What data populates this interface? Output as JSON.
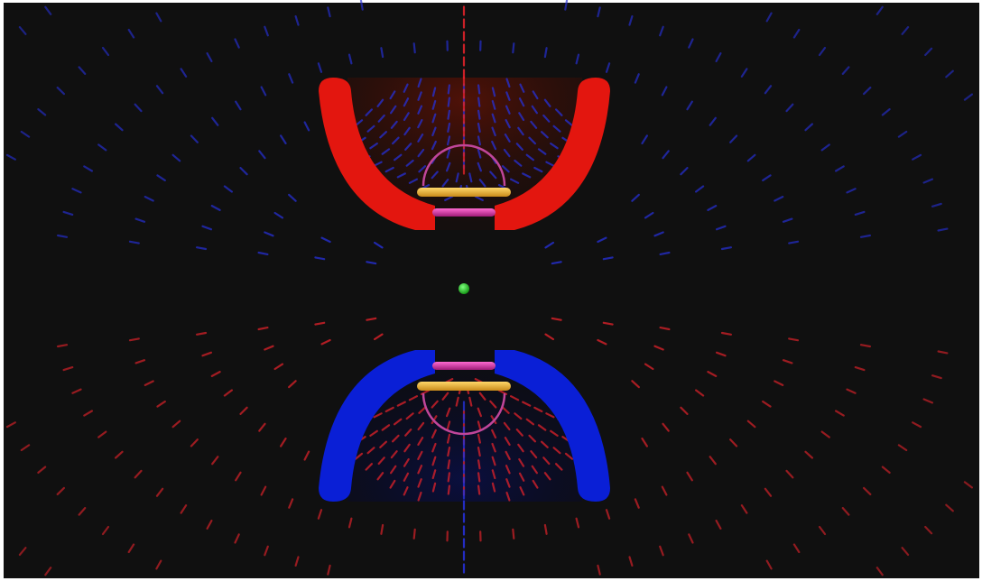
{
  "scene": {
    "background": "#101010",
    "frame_color": "#ffffff",
    "top_electrode": {
      "color": "#e3160f"
    },
    "bottom_electrode": {
      "color": "#0a1fd6"
    },
    "top_inner_glow": "#5a1206",
    "bottom_inner_glow": "#0a0f44",
    "endcap_bar": {
      "color": "#f2b233"
    },
    "ring_bar": {
      "color": "#d9359a"
    },
    "ring_outline": {
      "color": "#c0469a"
    },
    "trapped_particle": {
      "color": "#1ec01e"
    },
    "field_dash_red": "#e0222a",
    "field_dash_blue": "#2630d6"
  }
}
